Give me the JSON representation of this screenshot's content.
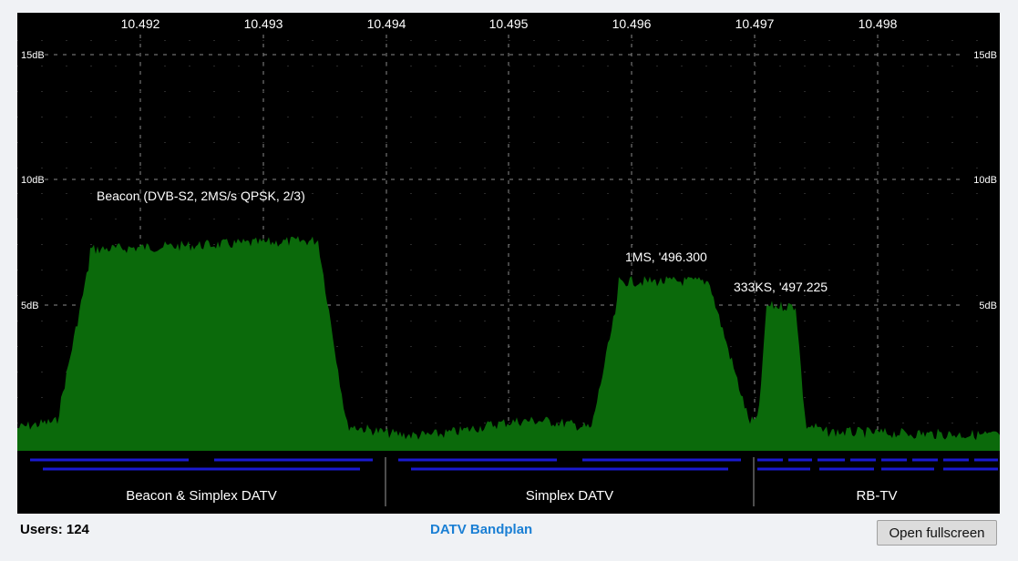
{
  "spectrum": {
    "freq_ticks": [
      "10.492",
      "10.493",
      "10.494",
      "10.495",
      "10.496",
      "10.497",
      "10.498"
    ],
    "db_labels": [
      "15dB",
      "10dB",
      "5dB"
    ],
    "annotations": [
      "Beacon (DVB-S2, 2MS/s QPSK, 2/3)",
      "1MS, '496.300",
      "333KS, '497.225"
    ],
    "signal_color": "#0b6a0b",
    "grid_color": "#8a8a8a"
  },
  "bandplan": {
    "segments": [
      "Beacon & Simplex DATV",
      "Simplex DATV",
      "RB-TV"
    ],
    "line_color": "#1a1ad0"
  },
  "footer": {
    "users_label": "Users: 124",
    "bandplan_link": "DATV Bandplan",
    "fullscreen_button": "Open fullscreen"
  }
}
